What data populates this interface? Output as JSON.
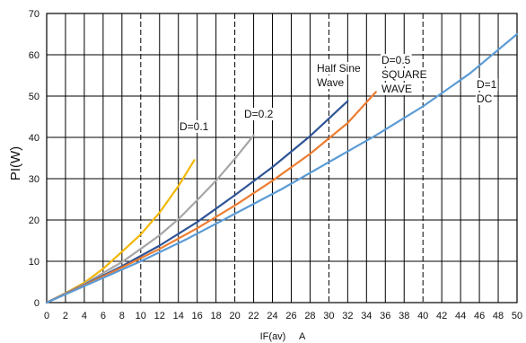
{
  "chart_data": {
    "type": "line",
    "title": "",
    "xlabel": "IF(av)     A",
    "ylabel": "PI(W)",
    "xlim": [
      0,
      50
    ],
    "ylim": [
      0,
      70
    ],
    "x_ticks": [
      0,
      2,
      4,
      6,
      8,
      10,
      12,
      14,
      16,
      18,
      20,
      22,
      24,
      26,
      28,
      30,
      32,
      34,
      36,
      38,
      40,
      42,
      44,
      46,
      48,
      50
    ],
    "y_ticks": [
      0,
      10,
      20,
      30,
      40,
      50,
      60,
      70
    ],
    "grid": "on",
    "series": [
      {
        "name": "D=0.1",
        "color": "#f2b705",
        "x": [
          0,
          2,
          4,
          6,
          8,
          10,
          12,
          14,
          15.7
        ],
        "y": [
          0,
          2.3,
          4.8,
          8.2,
          12.3,
          16.5,
          21.8,
          28.2,
          34.5
        ]
      },
      {
        "name": "D=0.2",
        "color": "#a6a6a6",
        "x": [
          0,
          4,
          8,
          10,
          12,
          14,
          16,
          18,
          20,
          22
        ],
        "y": [
          0,
          4.5,
          9.8,
          13.0,
          16.3,
          20.2,
          24.8,
          29.5,
          34.8,
          40.5
        ]
      },
      {
        "name": "Half Sine Wave",
        "color": "#2f5597",
        "x": [
          0,
          4,
          8,
          12,
          16,
          20,
          24,
          28,
          32
        ],
        "y": [
          0,
          4.3,
          8.8,
          13.8,
          19.5,
          26.0,
          32.8,
          40.3,
          48.8
        ]
      },
      {
        "name": "D=0.5 SQUARE WAVE",
        "color": "#ed7d31",
        "x": [
          0,
          4,
          8,
          12,
          16,
          20,
          24,
          28,
          32,
          35
        ],
        "y": [
          0,
          4.2,
          8.5,
          13.0,
          18.0,
          23.5,
          29.5,
          36.0,
          43.5,
          51.0
        ]
      },
      {
        "name": "D=1 DC",
        "color": "#5b9bd5",
        "x": [
          0,
          5,
          10,
          15,
          20,
          25,
          30,
          35,
          40,
          45,
          50
        ],
        "y": [
          0,
          5.0,
          10.0,
          15.5,
          21.5,
          27.5,
          34.0,
          40.5,
          47.5,
          55.5,
          65.0
        ]
      }
    ],
    "annotations": {
      "d01": "D=0.1",
      "d02": "D=0.2",
      "halfsine_line1": "Half Sine",
      "halfsine_line2": "Wave",
      "d05_line1": "D=0.5",
      "d05_line2": "SQUARE",
      "d05_line3": "WAVE",
      "d1_line1": "D=1",
      "d1_line2": "DC"
    }
  }
}
